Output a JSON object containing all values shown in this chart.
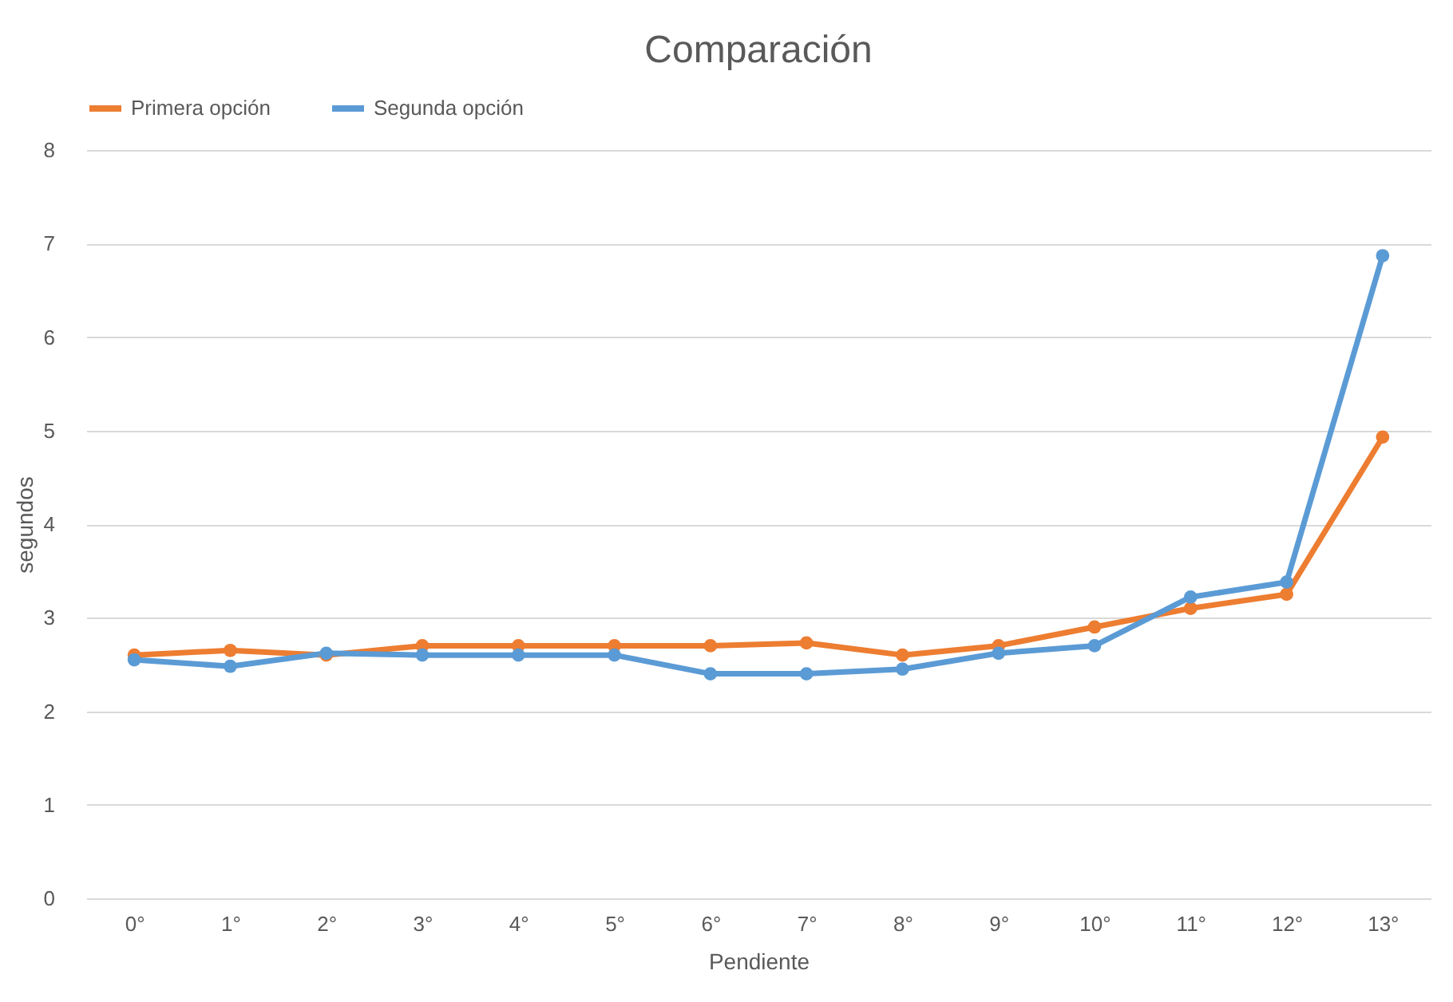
{
  "chart_data": {
    "type": "line",
    "title": "Comparación",
    "xlabel": "Pendiente",
    "ylabel": "segundos",
    "categories": [
      "0°",
      "1°",
      "2°",
      "3°",
      "4°",
      "5°",
      "6°",
      "7°",
      "8°",
      "9°",
      "10°",
      "11°",
      "12°",
      "13°"
    ],
    "series": [
      {
        "name": "Primera opción",
        "color": "#ed7d31",
        "values": [
          2.6,
          2.65,
          2.6,
          2.7,
          2.7,
          2.7,
          2.7,
          2.73,
          2.6,
          2.7,
          2.9,
          3.1,
          3.25,
          4.93
        ]
      },
      {
        "name": "Segunda opción",
        "color": "#5b9bd5",
        "values": [
          2.55,
          2.48,
          2.62,
          2.6,
          2.6,
          2.6,
          2.4,
          2.4,
          2.45,
          2.62,
          2.7,
          3.22,
          3.38,
          6.87
        ]
      }
    ],
    "ylim": [
      0,
      8
    ],
    "yticks": [
      0,
      1,
      2,
      3,
      4,
      5,
      6,
      7,
      8
    ],
    "grid": "y",
    "legend": "top",
    "marker": "circle",
    "line_style": "solid"
  }
}
